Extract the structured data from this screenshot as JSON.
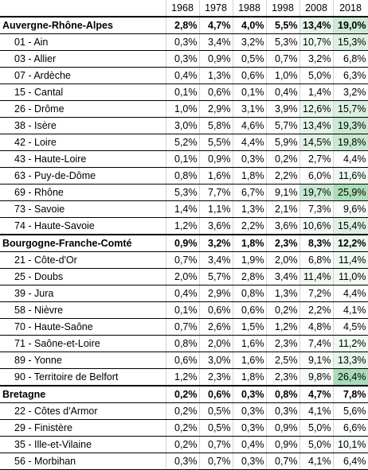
{
  "header": {
    "corner": "",
    "years": [
      "1968",
      "1978",
      "1988",
      "1998",
      "2008",
      "2018"
    ]
  },
  "rows": [
    {
      "kind": "region",
      "name": "Auvergne-Rhône-Alpes",
      "values": [
        "2,8%",
        "4,7%",
        "4,0%",
        "5,5%",
        "13,4%",
        "19,0%"
      ]
    },
    {
      "kind": "dept",
      "name": "01 - Ain",
      "values": [
        "0,3%",
        "3,4%",
        "3,2%",
        "5,3%",
        "10,7%",
        "15,3%"
      ]
    },
    {
      "kind": "dept",
      "name": "03 - Allier",
      "values": [
        "0,3%",
        "0,9%",
        "0,5%",
        "0,7%",
        "3,2%",
        "6,8%"
      ]
    },
    {
      "kind": "dept",
      "name": "07 - Ardèche",
      "values": [
        "0,4%",
        "1,3%",
        "0,6%",
        "1,0%",
        "5,0%",
        "6,3%"
      ]
    },
    {
      "kind": "dept",
      "name": "15 - Cantal",
      "values": [
        "0,1%",
        "0,6%",
        "0,1%",
        "0,4%",
        "1,4%",
        "3,2%"
      ]
    },
    {
      "kind": "dept",
      "name": "26 - Drôme",
      "values": [
        "1,0%",
        "2,9%",
        "3,1%",
        "3,9%",
        "12,6%",
        "15,7%"
      ]
    },
    {
      "kind": "dept",
      "name": "38 - Isère",
      "values": [
        "3,0%",
        "5,8%",
        "4,6%",
        "5,7%",
        "13,4%",
        "19,3%"
      ]
    },
    {
      "kind": "dept",
      "name": "42 - Loire",
      "values": [
        "5,2%",
        "5,5%",
        "4,4%",
        "5,9%",
        "14,5%",
        "19,8%"
      ]
    },
    {
      "kind": "dept",
      "name": "43 - Haute-Loire",
      "values": [
        "0,1%",
        "0,9%",
        "0,3%",
        "0,2%",
        "2,7%",
        "4,4%"
      ]
    },
    {
      "kind": "dept",
      "name": "63 - Puy-de-Dôme",
      "values": [
        "0,8%",
        "1,6%",
        "1,8%",
        "2,2%",
        "6,0%",
        "11,6%"
      ]
    },
    {
      "kind": "dept",
      "name": "69 - Rhône",
      "values": [
        "5,3%",
        "7,7%",
        "6,7%",
        "9,1%",
        "19,7%",
        "25,9%"
      ]
    },
    {
      "kind": "dept",
      "name": "73 - Savoie",
      "values": [
        "1,4%",
        "1,1%",
        "1,3%",
        "2,1%",
        "7,3%",
        "9,6%"
      ]
    },
    {
      "kind": "dept",
      "name": "74 - Haute-Savoie",
      "values": [
        "1,2%",
        "3,6%",
        "2,2%",
        "3,6%",
        "10,6%",
        "15,4%"
      ]
    },
    {
      "kind": "region",
      "name": "Bourgogne-Franche-Comté",
      "values": [
        "0,9%",
        "3,2%",
        "1,8%",
        "2,3%",
        "8,3%",
        "12,2%"
      ]
    },
    {
      "kind": "dept",
      "name": "21 - Côte-d'Or",
      "values": [
        "0,7%",
        "3,4%",
        "1,9%",
        "2,0%",
        "6,8%",
        "11,4%"
      ]
    },
    {
      "kind": "dept",
      "name": "25 - Doubs",
      "values": [
        "2,0%",
        "5,7%",
        "2,8%",
        "3,4%",
        "11,4%",
        "11,0%"
      ]
    },
    {
      "kind": "dept",
      "name": "39 - Jura",
      "values": [
        "0,4%",
        "2,9%",
        "0,8%",
        "1,3%",
        "7,2%",
        "4,4%"
      ]
    },
    {
      "kind": "dept",
      "name": "58 - Nièvre",
      "values": [
        "0,1%",
        "0,6%",
        "0,6%",
        "0,2%",
        "2,2%",
        "4,1%"
      ]
    },
    {
      "kind": "dept",
      "name": "70 - Haute-Saône",
      "values": [
        "0,7%",
        "2,6%",
        "1,5%",
        "1,2%",
        "4,8%",
        "4,5%"
      ]
    },
    {
      "kind": "dept",
      "name": "71 - Saône-et-Loire",
      "values": [
        "0,8%",
        "2,0%",
        "1,6%",
        "2,3%",
        "7,4%",
        "11,2%"
      ]
    },
    {
      "kind": "dept",
      "name": "89 - Yonne",
      "values": [
        "0,6%",
        "3,0%",
        "1,6%",
        "2,5%",
        "9,1%",
        "13,3%"
      ]
    },
    {
      "kind": "dept",
      "name": "90 - Territoire de Belfort",
      "values": [
        "1,2%",
        "2,3%",
        "1,8%",
        "2,3%",
        "9,8%",
        "26,4%"
      ]
    },
    {
      "kind": "region",
      "name": "Bretagne",
      "values": [
        "0,2%",
        "0,6%",
        "0,3%",
        "0,8%",
        "4,7%",
        "7,8%"
      ]
    },
    {
      "kind": "dept",
      "name": "22 - Côtes d'Armor",
      "values": [
        "0,2%",
        "0,5%",
        "0,3%",
        "0,3%",
        "4,1%",
        "5,6%"
      ]
    },
    {
      "kind": "dept",
      "name": "29 - Finistère",
      "values": [
        "0,2%",
        "0,5%",
        "0,3%",
        "0,9%",
        "5,0%",
        "6,6%"
      ]
    },
    {
      "kind": "dept",
      "name": "35 - Ille-et-Vilaine",
      "values": [
        "0,2%",
        "0,7%",
        "0,4%",
        "0,9%",
        "5,0%",
        "10,1%"
      ]
    },
    {
      "kind": "dept",
      "name": "56 - Morbihan",
      "values": [
        "0,3%",
        "0,7%",
        "0,3%",
        "0,7%",
        "4,1%",
        "6,4%"
      ]
    }
  ],
  "colors": {
    "heat_max": "#63be7b",
    "heat_min": "#ffffff",
    "grid": "#d4d4d4",
    "border": "#000000"
  }
}
